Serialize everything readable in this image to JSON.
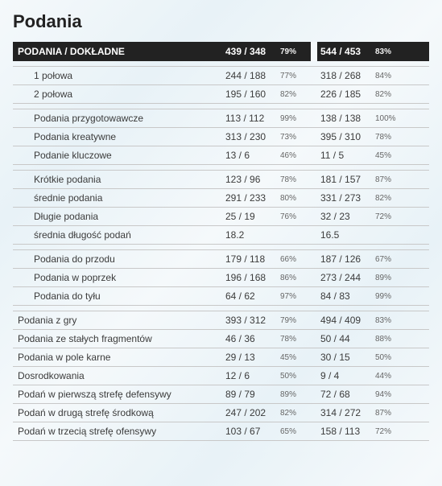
{
  "title": "Podania",
  "header": {
    "label": "PODANIA / DOKŁADNE",
    "team1_val": "439 / 348",
    "team1_pct": "79%",
    "team2_val": "544 / 453",
    "team2_pct": "83%"
  },
  "groups": [
    {
      "indent": true,
      "rows": [
        {
          "label": "1 połowa",
          "t1v": "244 / 188",
          "t1p": "77%",
          "t2v": "318 / 268",
          "t2p": "84%"
        },
        {
          "label": "2 połowa",
          "t1v": "195 / 160",
          "t1p": "82%",
          "t2v": "226 / 185",
          "t2p": "82%"
        }
      ]
    },
    {
      "indent": true,
      "rows": [
        {
          "label": "Podania przygotowawcze",
          "t1v": "113 / 112",
          "t1p": "99%",
          "t2v": "138 / 138",
          "t2p": "100%"
        },
        {
          "label": "Podania kreatywne",
          "t1v": "313 / 230",
          "t1p": "73%",
          "t2v": "395 / 310",
          "t2p": "78%"
        },
        {
          "label": "Podanie kluczowe",
          "t1v": "13 / 6",
          "t1p": "46%",
          "t2v": "11 / 5",
          "t2p": "45%"
        }
      ]
    },
    {
      "indent": true,
      "rows": [
        {
          "label": "Krótkie podania",
          "t1v": "123 / 96",
          "t1p": "78%",
          "t2v": "181 / 157",
          "t2p": "87%"
        },
        {
          "label": "średnie podania",
          "t1v": "291 / 233",
          "t1p": "80%",
          "t2v": "331 / 273",
          "t2p": "82%"
        },
        {
          "label": "Długie podania",
          "t1v": "25 / 19",
          "t1p": "76%",
          "t2v": "32 / 23",
          "t2p": "72%"
        },
        {
          "label": "średnia długość podań",
          "t1v": "18.2",
          "t1p": "",
          "t2v": "16.5",
          "t2p": ""
        }
      ]
    },
    {
      "indent": true,
      "rows": [
        {
          "label": "Podania do przodu",
          "t1v": "179 / 118",
          "t1p": "66%",
          "t2v": "187 / 126",
          "t2p": "67%"
        },
        {
          "label": "Podania w poprzek",
          "t1v": "196 / 168",
          "t1p": "86%",
          "t2v": "273 / 244",
          "t2p": "89%"
        },
        {
          "label": "Podania do tyłu",
          "t1v": "64 / 62",
          "t1p": "97%",
          "t2v": "84 / 83",
          "t2p": "99%"
        }
      ]
    },
    {
      "indent": false,
      "rows": [
        {
          "label": "Podania z gry",
          "t1v": "393 / 312",
          "t1p": "79%",
          "t2v": "494 / 409",
          "t2p": "83%"
        },
        {
          "label": "Podania ze stałych fragmentów",
          "t1v": "46 / 36",
          "t1p": "78%",
          "t2v": "50 / 44",
          "t2p": "88%"
        },
        {
          "label": "Podania w pole karne",
          "t1v": "29 / 13",
          "t1p": "45%",
          "t2v": "30 / 15",
          "t2p": "50%"
        },
        {
          "label": "Dosrodkowania",
          "t1v": "12 / 6",
          "t1p": "50%",
          "t2v": "9 / 4",
          "t2p": "44%"
        },
        {
          "label": "Podań w pierwszą strefę defensywy",
          "t1v": "89 / 79",
          "t1p": "89%",
          "t2v": "72 / 68",
          "t2p": "94%"
        },
        {
          "label": "Podań w drugą strefę środkową",
          "t1v": "247 / 202",
          "t1p": "82%",
          "t2v": "314 / 272",
          "t2p": "87%"
        },
        {
          "label": "Podań w trzecią strefę ofensywy",
          "t1v": "103 / 67",
          "t1p": "65%",
          "t2v": "158 / 113",
          "t2p": "72%"
        }
      ]
    }
  ],
  "colors": {
    "header_bg": "#222222",
    "header_fg": "#ffffff",
    "row_border": "#c8c8c8",
    "text": "#3b3b3b",
    "pct_text": "#666666"
  }
}
